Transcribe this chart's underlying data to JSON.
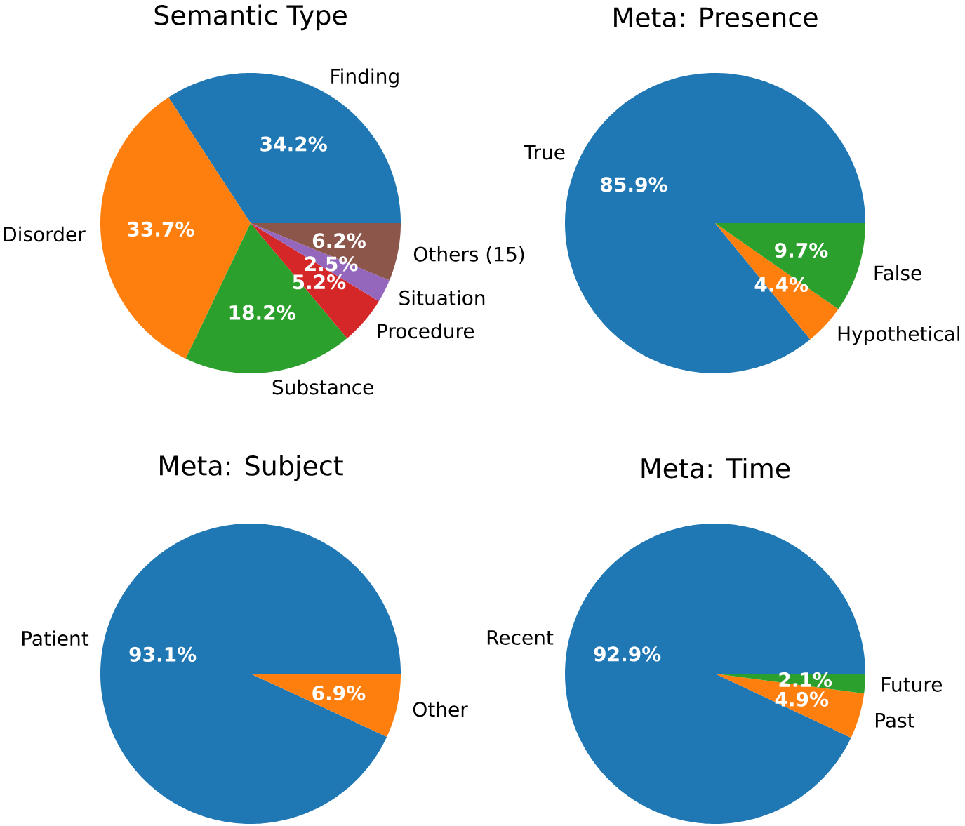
{
  "chart_data": [
    {
      "type": "pie",
      "title": "Semantic Type",
      "categories": [
        "Finding",
        "Disorder",
        "Substance",
        "Procedure",
        "Situation",
        "Others (15)"
      ],
      "values": [
        34.2,
        33.7,
        18.2,
        5.2,
        2.5,
        6.2
      ],
      "colors": [
        "#1f77b4",
        "#ff7f0e",
        "#2ca02c",
        "#d62728",
        "#9467bd",
        "#8c564b"
      ],
      "value_labels": [
        "34.2%",
        "33.7%",
        "18.2%",
        "5.2%",
        "2.5%",
        "6.2%"
      ]
    },
    {
      "type": "pie",
      "title": "Meta: Presence",
      "categories": [
        "True",
        "Hypothetical",
        "False"
      ],
      "values": [
        85.9,
        4.4,
        9.7
      ],
      "colors": [
        "#1f77b4",
        "#ff7f0e",
        "#2ca02c"
      ],
      "value_labels": [
        "85.9%",
        "4.4%",
        "9.7%"
      ]
    },
    {
      "type": "pie",
      "title": "Meta: Subject",
      "categories": [
        "Patient",
        "Other"
      ],
      "values": [
        93.1,
        6.9
      ],
      "colors": [
        "#1f77b4",
        "#ff7f0e"
      ],
      "value_labels": [
        "93.1%",
        "6.9%"
      ]
    },
    {
      "type": "pie",
      "title": "Meta: Time",
      "categories": [
        "Recent",
        "Past",
        "Future"
      ],
      "values": [
        92.9,
        4.9,
        2.1
      ],
      "colors": [
        "#1f77b4",
        "#ff7f0e",
        "#2ca02c"
      ],
      "value_labels": [
        "92.9%",
        "4.9%",
        "2.1%"
      ]
    }
  ]
}
